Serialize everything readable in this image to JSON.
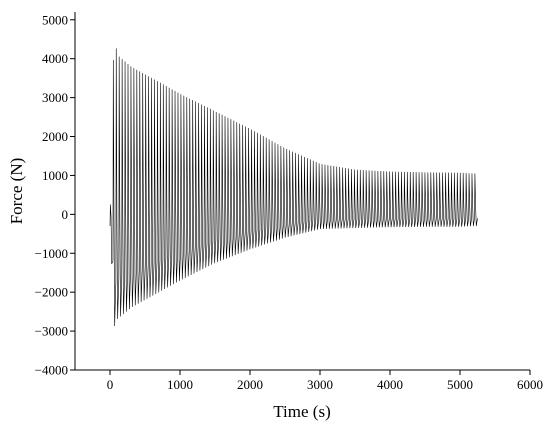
{
  "chart_data": {
    "type": "line",
    "title": "",
    "xlabel": "Time (s)",
    "ylabel": "Force (N)",
    "xlim": [
      -500,
      6000
    ],
    "ylim": [
      -4000,
      5200
    ],
    "xticks": [
      0,
      1000,
      2000,
      3000,
      4000,
      5000,
      6000
    ],
    "yticks": [
      -4000,
      -3000,
      -2000,
      -1000,
      0,
      1000,
      2000,
      3000,
      4000,
      5000
    ],
    "xtick_labels": [
      "0",
      "1000",
      "2000",
      "3000",
      "4000",
      "5000",
      "6000"
    ],
    "ytick_labels": [
      "−4000",
      "−3000",
      "−2000",
      "−1000",
      "0",
      "1000",
      "2000",
      "3000",
      "4000",
      "5000"
    ],
    "grid": false,
    "legend": "none",
    "series": [
      {
        "color": "#000000",
        "envelope_upper": {
          "x": [
            0,
            30,
            60,
            100,
            300,
            500,
            1000,
            1500,
            2000,
            2500,
            3000,
            3500,
            4000,
            4500,
            5000,
            5200
          ],
          "y": [
            -300,
            3000,
            4700,
            4100,
            3800,
            3600,
            3100,
            2650,
            2200,
            1700,
            1300,
            1150,
            1100,
            1080,
            1070,
            1050
          ]
        },
        "envelope_lower": {
          "x": [
            0,
            30,
            60,
            100,
            300,
            500,
            1000,
            1500,
            2000,
            2500,
            3000,
            3500,
            4000,
            4500,
            5000,
            5200
          ],
          "y": [
            -300,
            -1500,
            -2900,
            -2700,
            -2400,
            -2200,
            -1700,
            -1250,
            -900,
            -600,
            -380,
            -350,
            -330,
            -320,
            -320,
            -300
          ]
        },
        "cycle_period_s": 42,
        "x_end": 5250
      }
    ]
  }
}
